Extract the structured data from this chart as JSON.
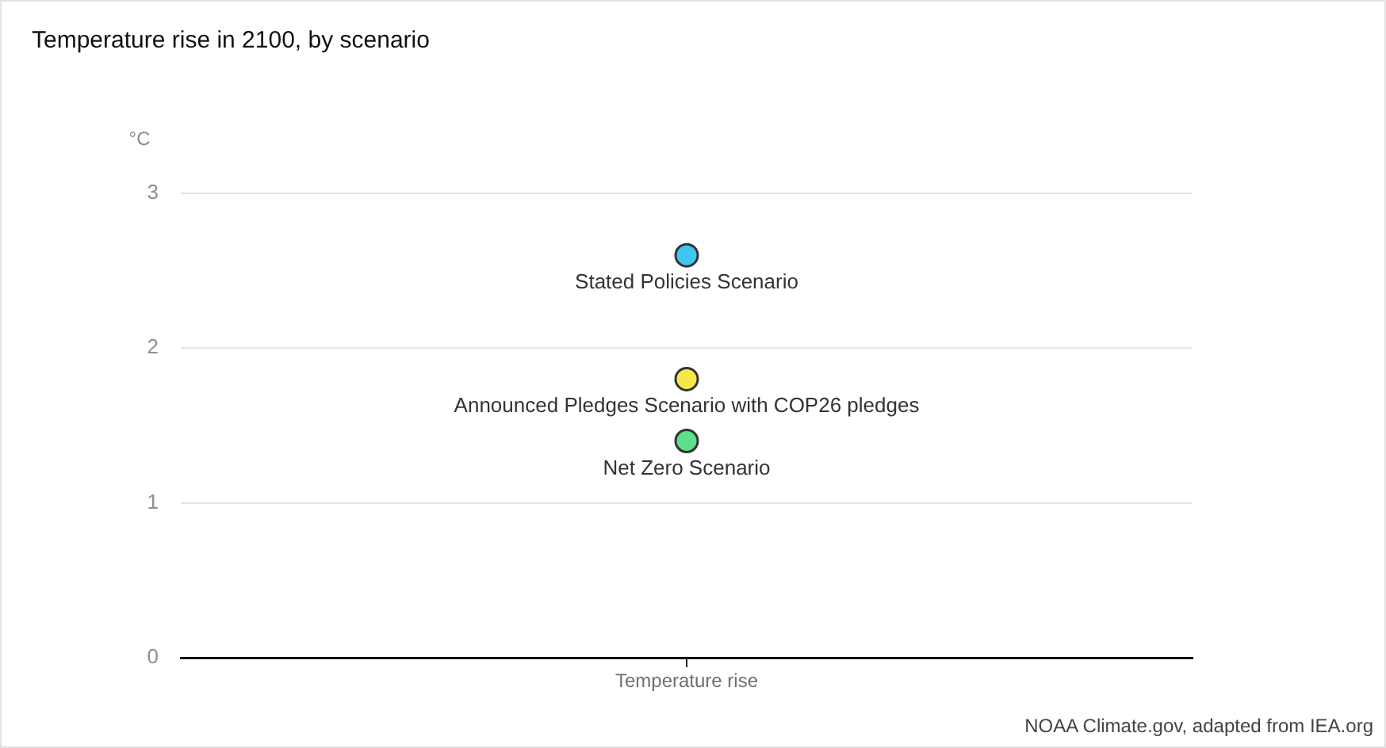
{
  "chart_data": {
    "type": "scatter",
    "title": "Temperature rise in 2100, by scenario",
    "ylabel": "°C",
    "categories": [
      "Temperature rise"
    ],
    "series": [
      {
        "name": "Stated Policies Scenario",
        "color": "#40c4f0",
        "x": [
          "Temperature rise"
        ],
        "values": [
          2.6
        ]
      },
      {
        "name": "Announced Pledges Scenario with COP26 pledges",
        "color": "#f6e84a",
        "x": [
          "Temperature rise"
        ],
        "values": [
          1.8
        ]
      },
      {
        "name": "Net Zero Scenario",
        "color": "#5ddf8a",
        "x": [
          "Temperature rise"
        ],
        "values": [
          1.4
        ]
      }
    ],
    "ylim": [
      0,
      3
    ],
    "yticks": [
      0,
      1,
      2,
      3
    ],
    "grid": "y",
    "legend": false,
    "marker": "circle",
    "annotations": [
      "NOAA Climate.gov, adapted from IEA.org"
    ]
  }
}
